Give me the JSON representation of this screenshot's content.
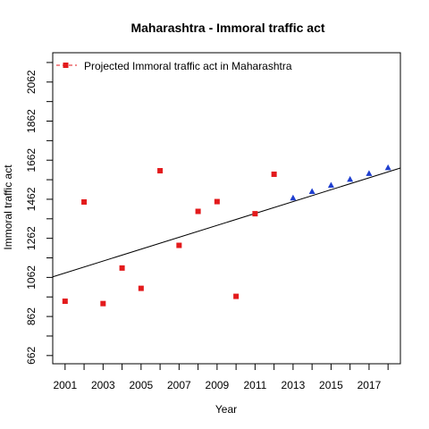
{
  "chart_data": {
    "type": "scatter",
    "title": "Maharashtra  -  Immoral traffic act",
    "xlabel": "Year",
    "ylabel": "Immoral traffic act",
    "xlim": [
      2000.35,
      2018.65
    ],
    "ylim": [
      620,
      2212
    ],
    "x_ticks_labeled": [
      2001,
      2003,
      2005,
      2007,
      2009,
      2011,
      2013,
      2015,
      2017
    ],
    "x_ticks_minor": [
      2002,
      2004,
      2006,
      2008,
      2010,
      2012,
      2014,
      2016,
      2018
    ],
    "y_ticks_labeled": [
      662,
      862,
      1062,
      1262,
      1462,
      1662,
      1862,
      2062
    ],
    "y_ticks_minor": [
      762,
      962,
      1162,
      1362,
      1562,
      1762,
      1962,
      2162
    ],
    "legend": {
      "placement": "top-left",
      "label": "Projected  Immoral traffic act  in  Maharashtra"
    },
    "trend_line": {
      "x": [
        2000.35,
        2018.65
      ],
      "y": [
        1065,
        1622
      ]
    },
    "series": [
      {
        "marker": "square",
        "color": "#e31a1c",
        "x": [
          2001,
          2002,
          2003,
          2004,
          2005,
          2006,
          2007,
          2008,
          2009,
          2010,
          2011,
          2012
        ],
        "y": [
          940,
          1448,
          928,
          1110,
          1006,
          1608,
          1226,
          1400,
          1450,
          965,
          1388,
          1590
        ]
      },
      {
        "marker": "triangle",
        "color": "#1f3fcf",
        "x": [
          2013,
          2014,
          2015,
          2016,
          2017,
          2018
        ],
        "y": [
          1470,
          1503,
          1535,
          1565,
          1595,
          1625
        ]
      }
    ]
  }
}
